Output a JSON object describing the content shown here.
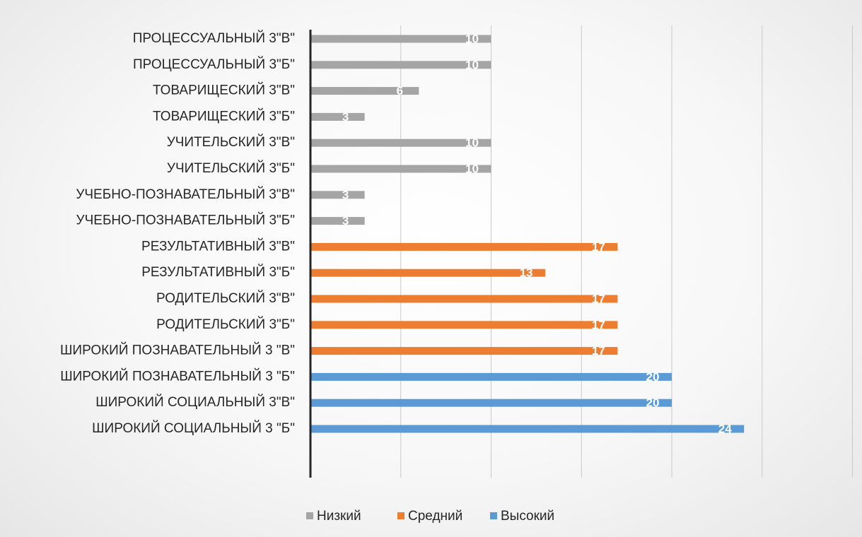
{
  "chart_data": {
    "type": "bar",
    "orientation": "horizontal",
    "categories": [
      "ПРОЦЕССУАЛЬНЫЙ 3\"В\"",
      "ПРОЦЕССУАЛЬНЫЙ 3\"Б\"",
      "ТОВАРИЩЕСКИЙ 3\"В\"",
      "ТОВАРИЩЕСКИЙ 3\"Б\"",
      "УЧИТЕЛЬСКИЙ 3\"В\"",
      "УЧИТЕЛЬСКИЙ 3\"Б\"",
      "УЧЕБНО-ПОЗНАВАТЕЛЬНЫЙ 3\"В\"",
      "УЧЕБНО-ПОЗНАВАТЕЛЬНЫЙ 3\"Б\"",
      "РЕЗУЛЬТАТИВНЫЙ 3\"В\"",
      "РЕЗУЛЬТАТИВНЫЙ 3\"Б\"",
      "РОДИТЕЛЬСКИЙ 3\"В\"",
      "РОДИТЕЛЬСКИЙ 3\"Б\"",
      "ШИРОКИЙ ПОЗНАВАТЕЛЬНЫЙ 3 \"В\"",
      "ШИРОКИЙ ПОЗНАВАТЕЛЬНЫЙ 3 \"Б\"",
      "ШИРОКИЙ СОЦИАЛЬНЫЙ 3\"В\"",
      "ШИРОКИЙ СОЦИАЛЬНЫЙ 3 \"Б\""
    ],
    "series": [
      {
        "name": "Низкий",
        "color": "#a5a5a5",
        "values": [
          10,
          10,
          6,
          3,
          10,
          10,
          3,
          3,
          null,
          null,
          null,
          null,
          null,
          null,
          null,
          null
        ]
      },
      {
        "name": "Средний",
        "color": "#ed7d31",
        "values": [
          null,
          null,
          null,
          null,
          null,
          null,
          null,
          null,
          17,
          13,
          17,
          17,
          17,
          null,
          null,
          null
        ]
      },
      {
        "name": "Высокий",
        "color": "#5b9bd5",
        "values": [
          null,
          null,
          null,
          null,
          null,
          null,
          null,
          null,
          null,
          null,
          null,
          null,
          null,
          20,
          20,
          24
        ]
      }
    ],
    "xlim": [
      0,
      30
    ],
    "x_gridline_step": 5,
    "x_tick_labels_shown": false,
    "grid": true,
    "legend_position": "bottom",
    "title": "",
    "xlabel": "",
    "ylabel": ""
  }
}
